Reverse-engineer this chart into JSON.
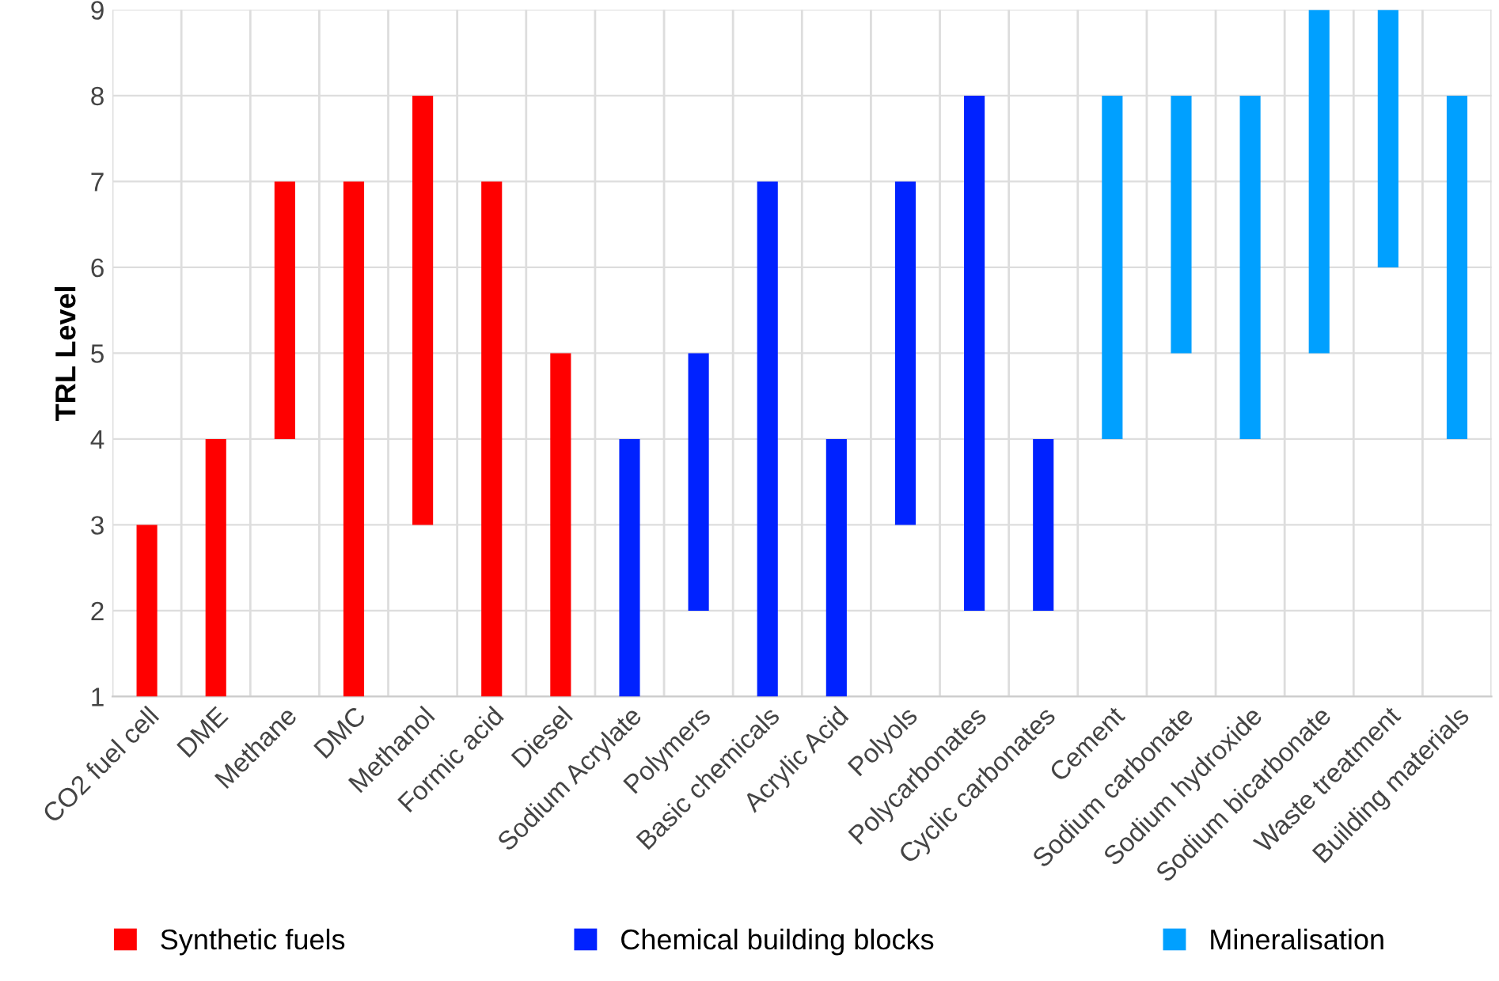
{
  "chart_data": {
    "type": "bar",
    "ylabel": "TRL Level",
    "ylim": [
      1,
      9
    ],
    "yticks": [
      1,
      2,
      3,
      4,
      5,
      6,
      7,
      8,
      9
    ],
    "grid": true,
    "legend": "bottom",
    "categories": [
      "CO2 fuel cell",
      "DME",
      "Methane",
      "DMC",
      "Methanol",
      "Formic acid",
      "Diesel",
      "Sodium Acrylate",
      "Polymers",
      "Basic chemicals",
      "Acrylic Acid",
      "Polyols",
      "Polycarbonates",
      "Cyclic carbonates",
      "Cement",
      "Sodium carbonate",
      "Sodium hydroxide",
      "Sodium bicarbonate",
      "Waste treatment",
      "Building materials"
    ],
    "series": [
      {
        "name": "Synthetic fuels",
        "color": "#ff0000",
        "base": [
          1,
          1,
          4,
          1,
          3,
          1,
          1,
          null,
          null,
          null,
          null,
          null,
          null,
          null,
          null,
          null,
          null,
          null,
          null,
          null
        ],
        "values": [
          2,
          3,
          3,
          6,
          5,
          6,
          4,
          null,
          null,
          null,
          null,
          null,
          null,
          null,
          null,
          null,
          null,
          null,
          null,
          null
        ]
      },
      {
        "name": "Chemical building blocks",
        "color": "#0022ff",
        "base": [
          null,
          null,
          null,
          null,
          null,
          null,
          null,
          1,
          2,
          1,
          1,
          3,
          2,
          2,
          null,
          null,
          null,
          null,
          null,
          null
        ],
        "values": [
          null,
          null,
          null,
          null,
          null,
          null,
          null,
          3,
          3,
          6,
          3,
          4,
          6,
          2,
          null,
          null,
          null,
          null,
          null,
          null
        ]
      },
      {
        "name": "Mineralisation",
        "color": "#00a0ff",
        "base": [
          null,
          null,
          null,
          null,
          null,
          null,
          null,
          null,
          null,
          null,
          null,
          null,
          null,
          null,
          4,
          5,
          4,
          5,
          6,
          4
        ],
        "values": [
          null,
          null,
          null,
          null,
          null,
          null,
          null,
          null,
          null,
          null,
          null,
          null,
          null,
          null,
          4,
          3,
          4,
          4,
          3,
          4
        ]
      }
    ]
  }
}
